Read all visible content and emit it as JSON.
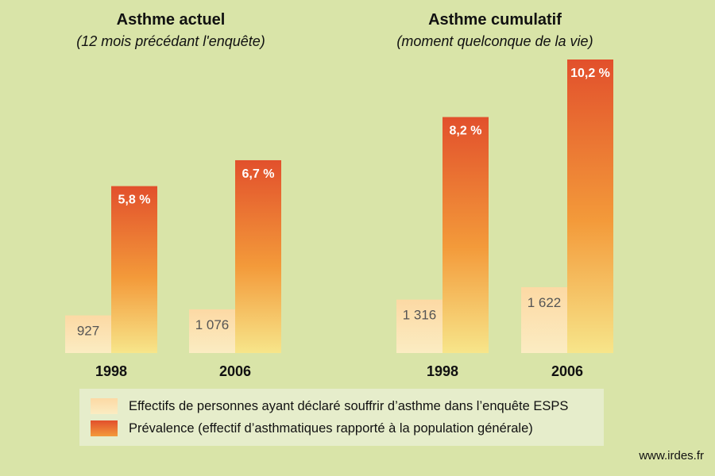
{
  "chart_data": [
    {
      "type": "bar",
      "title": "Asthme actuel",
      "subtitle": "(12 mois précédant l'enquête)",
      "categories": [
        "1998",
        "2006"
      ],
      "series": [
        {
          "key": "count",
          "values": [
            927,
            1076
          ],
          "labels": [
            "927",
            "1 076"
          ]
        },
        {
          "key": "prevalence",
          "values": [
            5.8,
            6.7
          ],
          "labels": [
            "5,8 %",
            "6,7 %"
          ]
        }
      ]
    },
    {
      "type": "bar",
      "title": "Asthme cumulatif",
      "subtitle": "(moment quelconque de la vie)",
      "categories": [
        "1998",
        "2006"
      ],
      "series": [
        {
          "key": "count",
          "values": [
            1316,
            1622
          ],
          "labels": [
            "1 316",
            "1 622"
          ]
        },
        {
          "key": "prevalence",
          "values": [
            8.2,
            10.2
          ],
          "labels": [
            "8,2 %",
            "10,2 %"
          ]
        }
      ]
    }
  ],
  "legend": {
    "count": "Effectifs de personnes ayant déclaré souffrir d’asthme dans l’enquête ESPS",
    "prevalence": "Prévalence (effectif d’asthmatiques rapporté à la population générale)"
  },
  "source": "www.irdes.fr",
  "colors": {
    "background": "#d9e4a8",
    "prevalence_top": "#e2502c",
    "prevalence_bottom": "#f7e58a",
    "count_top": "#fcd9a4",
    "count_bottom": "#fbecc2"
  }
}
